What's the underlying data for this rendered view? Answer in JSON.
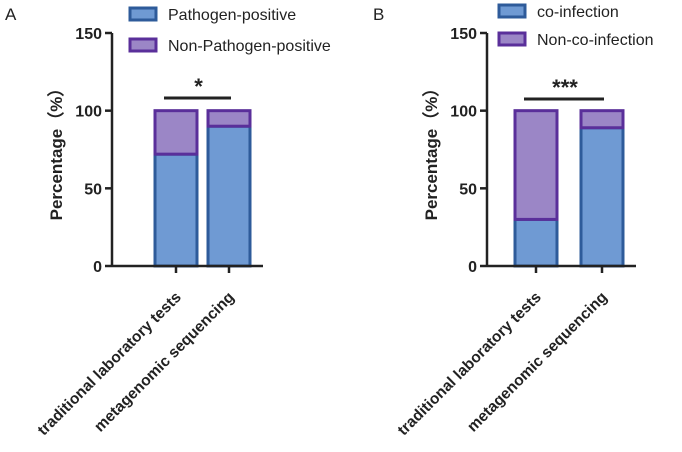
{
  "chart_data": [
    {
      "type": "bar",
      "stacked": true,
      "panel_label": "A",
      "title": "",
      "xlabel": "",
      "ylabel": "Percentage（%）",
      "ylim": [
        0,
        150
      ],
      "yticks": [
        0,
        50,
        100,
        150
      ],
      "grid": false,
      "legend_position": "top",
      "categories": [
        "traditional laboratory tests",
        "metagenomic sequencing"
      ],
      "series": [
        {
          "name": "Pathogen-positive",
          "values": [
            72,
            90
          ],
          "color": "#6f9ad3",
          "edge": "#2e5b9a"
        },
        {
          "name": "Non-Pathogen-positive",
          "values": [
            28,
            10
          ],
          "color": "#9b86c6",
          "edge": "#5a2f9a"
        }
      ],
      "significance": "*"
    },
    {
      "type": "bar",
      "stacked": true,
      "panel_label": "B",
      "title": "",
      "xlabel": "",
      "ylabel": "Percentage（%）",
      "ylim": [
        0,
        150
      ],
      "yticks": [
        0,
        50,
        100,
        150
      ],
      "grid": false,
      "legend_position": "top",
      "categories": [
        "traditional laboratory tests",
        "metagenomic sequencing"
      ],
      "series": [
        {
          "name": "co-infection",
          "values": [
            30,
            89
          ],
          "color": "#6f9ad3",
          "edge": "#2e5b9a"
        },
        {
          "name": "Non-co-infection",
          "values": [
            70,
            11
          ],
          "color": "#9b86c6",
          "edge": "#5a2f9a"
        }
      ],
      "significance": "***"
    }
  ]
}
